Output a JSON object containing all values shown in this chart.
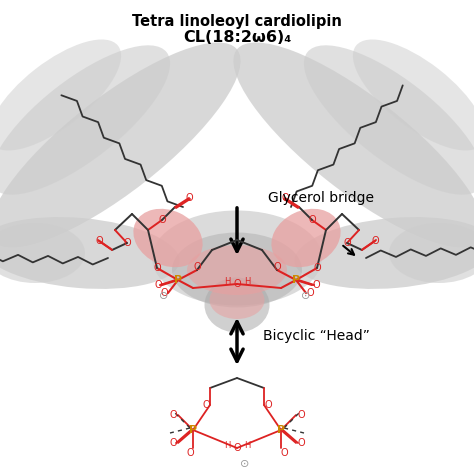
{
  "title_line1": "Tetra linoleoyl cardiolipin",
  "title_line2": "CL(18:2ω6)₄",
  "label_glycerol": "Glycerol bridge",
  "label_bicyclic": "Bicyclic “Head”",
  "bg_color": "#ffffff",
  "tail_color_light": "#cccccc",
  "tail_color_dark": "#aaaaaa",
  "red_highlight": "#e8a0a0",
  "bond_color": "#333333",
  "oxygen_color": "#dd2222",
  "phosphorus_color": "#cc8800",
  "gray_mid": "#bbbbbb",
  "title_fontsize": 10.5,
  "label_fontsize": 10
}
